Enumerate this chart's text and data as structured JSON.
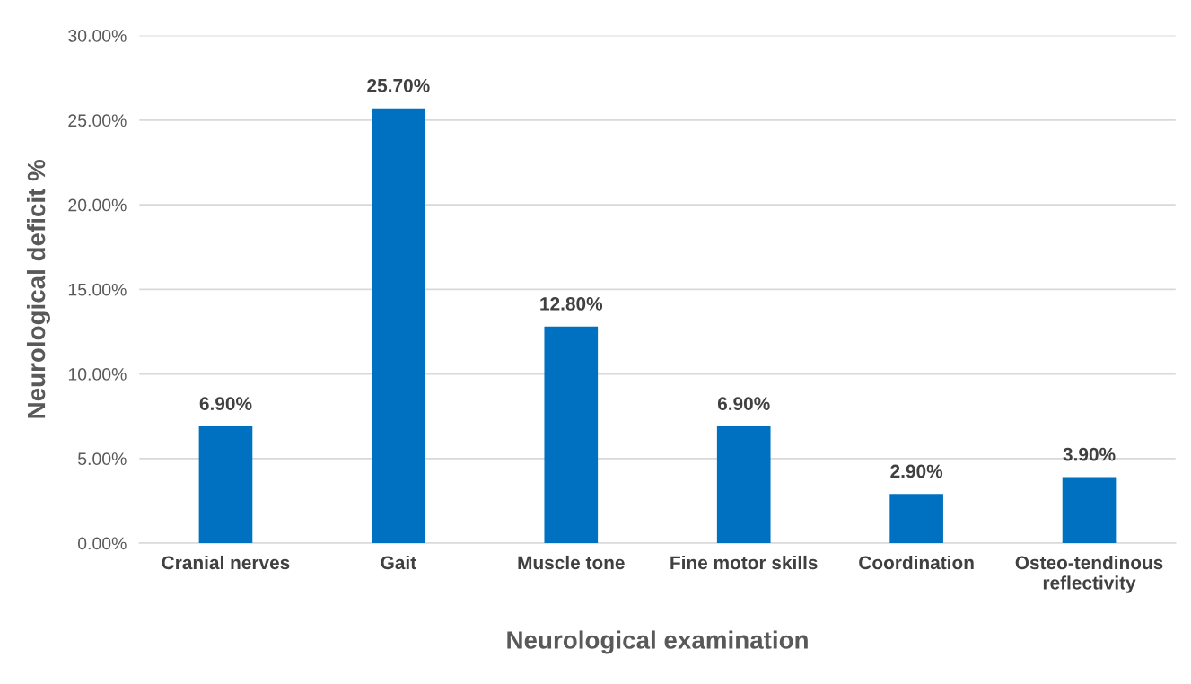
{
  "chart_data": {
    "type": "bar",
    "xlabel": "Neurological examination",
    "ylabel": "Neurological deficit %",
    "categories": [
      "Cranial nerves",
      "Gait",
      "Muscle tone",
      "Fine motor skills",
      "Coordination",
      "Osteo-tendinous\nreflectivity"
    ],
    "values": [
      6.9,
      25.7,
      12.8,
      6.9,
      2.9,
      3.9
    ],
    "value_labels": [
      "6.90%",
      "25.70%",
      "12.80%",
      "6.90%",
      "2.90%",
      "3.90%"
    ],
    "color": "#0070c0",
    "ylim": [
      0,
      30
    ],
    "yticks": [
      {
        "value": 0,
        "label": "0.00%"
      },
      {
        "value": 5,
        "label": "5.00%"
      },
      {
        "value": 10,
        "label": "10.00%"
      },
      {
        "value": 15,
        "label": "15.00%"
      },
      {
        "value": 20,
        "label": "20.00%"
      },
      {
        "value": 25,
        "label": "25.00%"
      },
      {
        "value": 30,
        "label": "30.00%"
      }
    ],
    "grid": "y",
    "legend": false
  }
}
